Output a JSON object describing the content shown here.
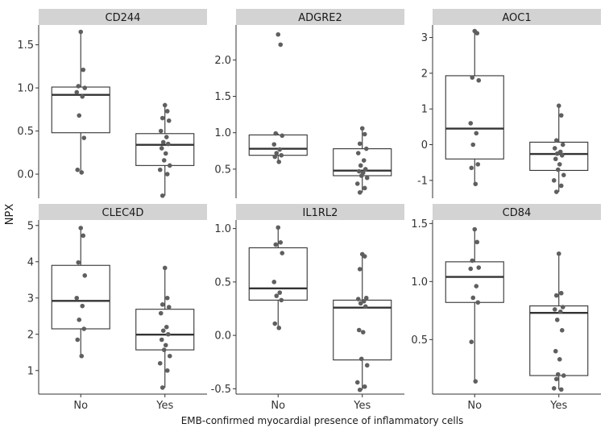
{
  "chart_data": {
    "type": "boxplot",
    "ylabel": "NPX",
    "xlabel": "EMB-confirmed myocardial presence of inflammatory cells",
    "categories": [
      "No",
      "Yes"
    ],
    "colors": {
      "strip": "#d3d3d3",
      "box_fill": "#ffffff",
      "box_line": "#333333",
      "median": "#333333",
      "point": "#5f5f5f",
      "axis": "#333333"
    },
    "panels": [
      {
        "title": "CD244",
        "ylim": [
          -0.28,
          1.73
        ],
        "yticks": [
          0.0,
          0.5,
          1.0,
          1.5
        ],
        "tick_labels": [
          "0.0",
          "0.5",
          "1.0",
          "1.5"
        ],
        "groups": [
          {
            "category": "No",
            "q1": 0.48,
            "median": 0.92,
            "q3": 1.01,
            "whisker_low": 0.02,
            "whisker_high": 1.65,
            "points": [
              1.65,
              1.21,
              1.02,
              1.0,
              0.95,
              0.9,
              0.68,
              0.42,
              0.05,
              0.02
            ]
          },
          {
            "category": "Yes",
            "q1": 0.1,
            "median": 0.34,
            "q3": 0.47,
            "whisker_low": -0.25,
            "whisker_high": 0.8,
            "points": [
              0.8,
              0.73,
              0.65,
              0.62,
              0.5,
              0.43,
              0.37,
              0.35,
              0.3,
              0.24,
              0.16,
              0.1,
              0.05,
              0.0,
              -0.25
            ]
          }
        ]
      },
      {
        "title": "ADGRE2",
        "ylim": [
          0.1,
          2.48
        ],
        "yticks": [
          0.5,
          1.0,
          1.5,
          2.0
        ],
        "tick_labels": [
          "0.5",
          "1.0",
          "1.5",
          "2.0"
        ],
        "groups": [
          {
            "category": "No",
            "q1": 0.69,
            "median": 0.78,
            "q3": 0.97,
            "whisker_low": 0.59,
            "whisker_high": 0.99,
            "points": [
              2.35,
              2.21,
              0.99,
              0.96,
              0.84,
              0.77,
              0.72,
              0.69,
              0.67,
              0.6
            ]
          },
          {
            "category": "Yes",
            "q1": 0.41,
            "median": 0.48,
            "q3": 0.78,
            "whisker_low": 0.18,
            "whisker_high": 1.06,
            "points": [
              1.06,
              0.98,
              0.85,
              0.78,
              0.72,
              0.62,
              0.55,
              0.5,
              0.47,
              0.45,
              0.41,
              0.38,
              0.3,
              0.24,
              0.18
            ]
          }
        ]
      },
      {
        "title": "AOC1",
        "ylim": [
          -1.5,
          3.35
        ],
        "yticks": [
          -1,
          0,
          1,
          2,
          3
        ],
        "tick_labels": [
          "-1",
          "0",
          "1",
          "2",
          "3"
        ],
        "groups": [
          {
            "category": "No",
            "q1": -0.4,
            "median": 0.45,
            "q3": 1.93,
            "whisker_low": -1.1,
            "whisker_high": 3.18,
            "points": [
              3.18,
              3.12,
              1.88,
              1.8,
              0.6,
              0.32,
              0.0,
              -0.55,
              -0.65,
              -1.1
            ]
          },
          {
            "category": "Yes",
            "q1": -0.72,
            "median": -0.26,
            "q3": 0.07,
            "whisker_low": -1.32,
            "whisker_high": 1.09,
            "points": [
              1.09,
              0.82,
              0.12,
              0.0,
              -0.1,
              -0.2,
              -0.25,
              -0.3,
              -0.4,
              -0.55,
              -0.7,
              -0.85,
              -1.0,
              -1.15,
              -1.32
            ]
          }
        ]
      },
      {
        "title": "CLEC4D",
        "ylim": [
          0.35,
          5.15
        ],
        "yticks": [
          1,
          2,
          3,
          4,
          5
        ],
        "tick_labels": [
          "1",
          "2",
          "3",
          "4",
          "5"
        ],
        "groups": [
          {
            "category": "No",
            "q1": 2.15,
            "median": 2.92,
            "q3": 3.9,
            "whisker_low": 1.4,
            "whisker_high": 4.93,
            "points": [
              4.93,
              4.72,
              3.98,
              3.62,
              3.0,
              2.78,
              2.4,
              2.15,
              1.85,
              1.4
            ]
          },
          {
            "category": "Yes",
            "q1": 1.57,
            "median": 1.99,
            "q3": 2.69,
            "whisker_low": 0.53,
            "whisker_high": 3.83,
            "points": [
              3.83,
              3.0,
              2.82,
              2.75,
              2.58,
              2.2,
              2.1,
              2.0,
              1.85,
              1.7,
              1.57,
              1.4,
              1.2,
              1.0,
              0.53
            ]
          }
        ]
      },
      {
        "title": "IL1RL2",
        "ylim": [
          -0.55,
          1.08
        ],
        "yticks": [
          -0.5,
          0.0,
          0.5,
          1.0
        ],
        "tick_labels": [
          "-0.5",
          "0.0",
          "0.5",
          "1.0"
        ],
        "groups": [
          {
            "category": "No",
            "q1": 0.33,
            "median": 0.44,
            "q3": 0.82,
            "whisker_low": 0.07,
            "whisker_high": 1.01,
            "points": [
              1.01,
              0.87,
              0.85,
              0.77,
              0.5,
              0.4,
              0.37,
              0.33,
              0.11,
              0.07
            ]
          },
          {
            "category": "Yes",
            "q1": -0.23,
            "median": 0.26,
            "q3": 0.33,
            "whisker_low": -0.51,
            "whisker_high": 0.76,
            "points": [
              0.76,
              0.74,
              0.62,
              0.35,
              0.34,
              0.32,
              0.3,
              0.27,
              0.05,
              0.03,
              -0.22,
              -0.28,
              -0.44,
              -0.48,
              -0.51
            ]
          }
        ]
      },
      {
        "title": "CD84",
        "ylim": [
          0.03,
          1.53
        ],
        "yticks": [
          0.5,
          1.0,
          1.5
        ],
        "tick_labels": [
          "0.5",
          "1.0",
          "1.5"
        ],
        "groups": [
          {
            "category": "No",
            "q1": 0.82,
            "median": 1.04,
            "q3": 1.17,
            "whisker_low": 0.14,
            "whisker_high": 1.45,
            "points": [
              1.45,
              1.34,
              1.18,
              1.12,
              1.11,
              0.96,
              0.86,
              0.82,
              0.48,
              0.14
            ]
          },
          {
            "category": "Yes",
            "q1": 0.19,
            "median": 0.73,
            "q3": 0.79,
            "whisker_low": 0.07,
            "whisker_high": 1.24,
            "points": [
              1.24,
              0.9,
              0.88,
              0.78,
              0.76,
              0.74,
              0.67,
              0.58,
              0.4,
              0.33,
              0.2,
              0.19,
              0.08,
              0.07,
              0.16
            ]
          }
        ]
      }
    ]
  }
}
